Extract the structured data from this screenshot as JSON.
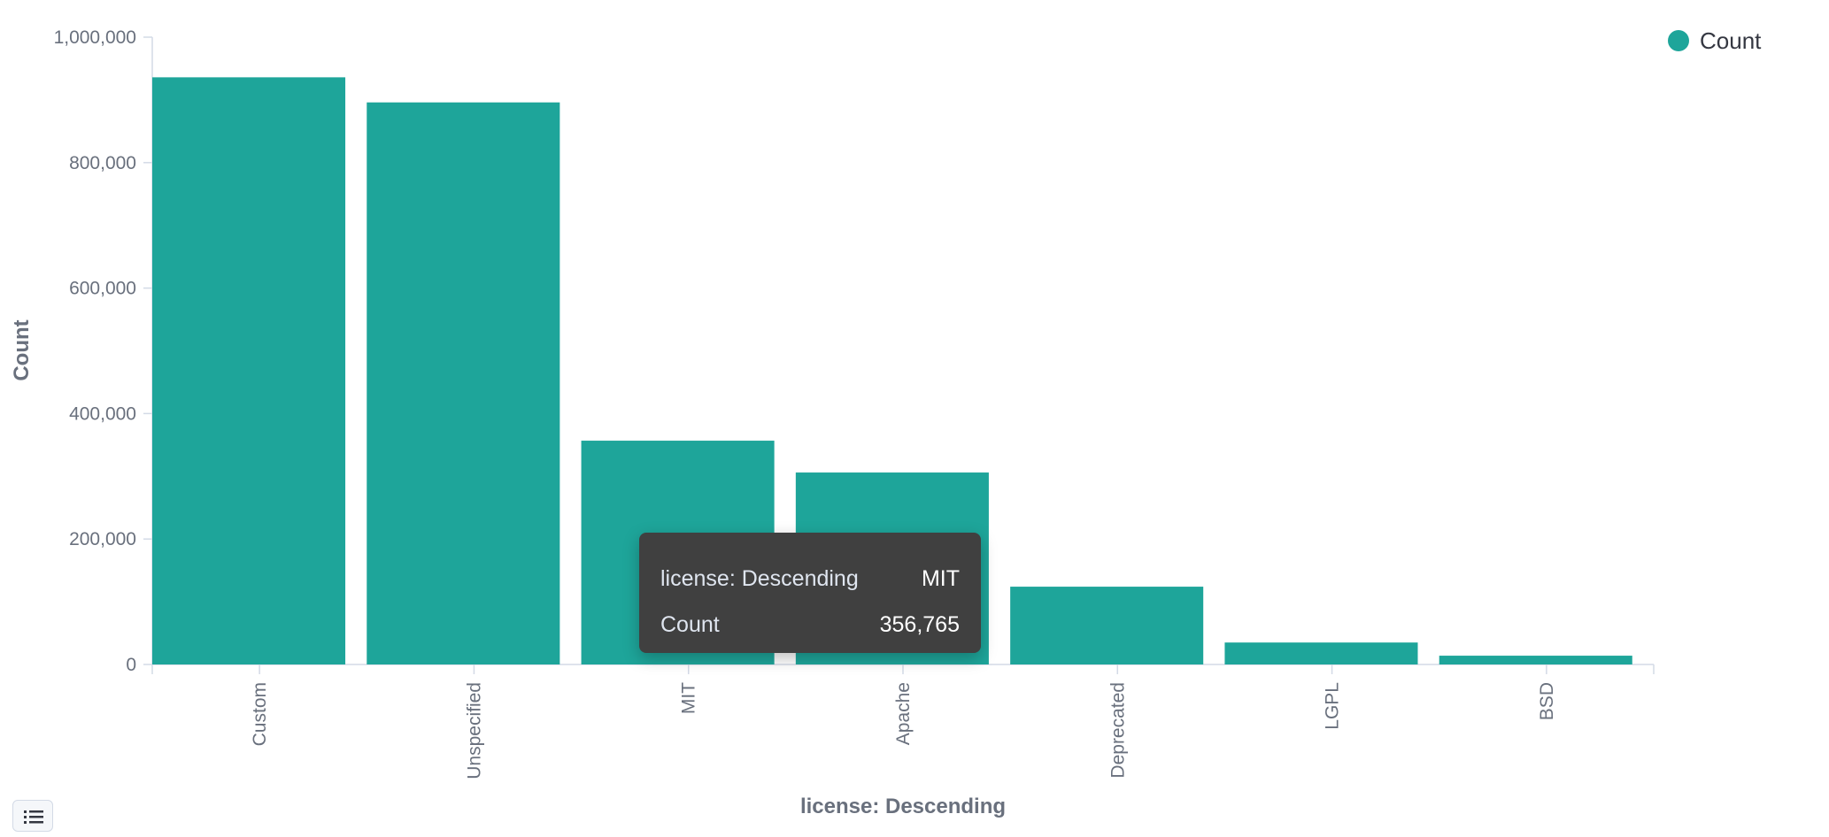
{
  "chart_data": {
    "type": "bar",
    "categories": [
      "Custom",
      "Unspecified",
      "MIT",
      "Apache",
      "Deprecated",
      "LGPL",
      "BSD"
    ],
    "series": [
      {
        "name": "Count",
        "values": [
          936000,
          896000,
          356765,
          306000,
          124000,
          35000,
          14000
        ]
      }
    ],
    "xlabel": "license: Descending",
    "ylabel": "Count",
    "ylim": [
      0,
      1000000
    ],
    "yticks": [
      0,
      200000,
      400000,
      600000,
      800000,
      1000000
    ],
    "ytick_labels": [
      "0",
      "200,000",
      "400,000",
      "600,000",
      "800,000",
      "1,000,000"
    ],
    "grid": false,
    "legend_position": "top-right",
    "bar_color": "#1ea59a"
  },
  "legend": {
    "label": "Count",
    "color": "#1ea59a"
  },
  "tooltip": {
    "rows": [
      {
        "key": "license: Descending",
        "value": "MIT"
      },
      {
        "key": "Count",
        "value": "356,765"
      }
    ]
  },
  "legend_toggle": {
    "icon": "list-icon"
  }
}
